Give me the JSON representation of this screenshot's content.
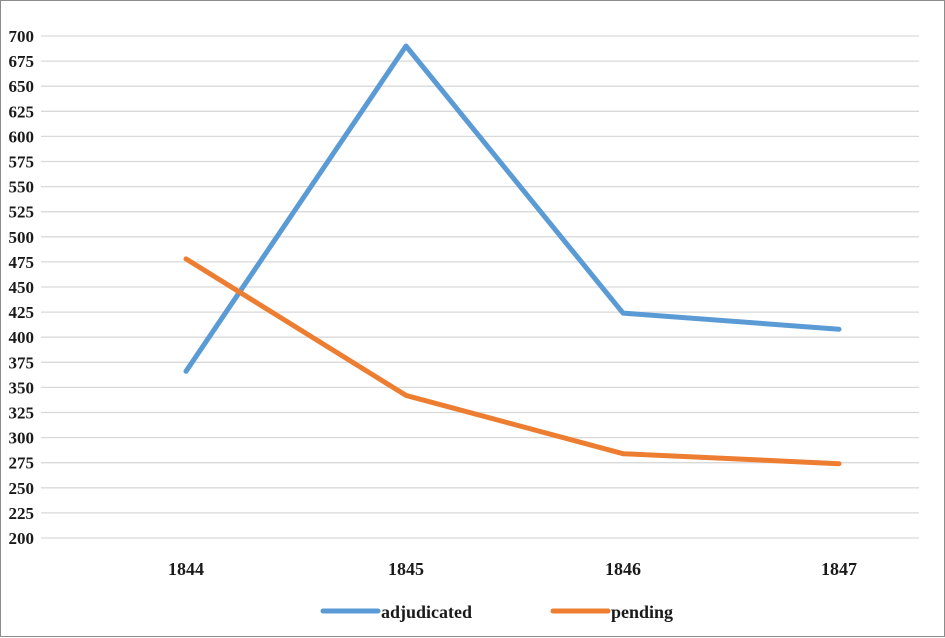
{
  "chart_data": {
    "type": "line",
    "categories": [
      "1844",
      "1845",
      "1846",
      "1847"
    ],
    "series": [
      {
        "name": "adjudicated",
        "color": "#5b9bd5",
        "values": [
          366,
          690,
          424,
          408
        ]
      },
      {
        "name": "pending",
        "color": "#ed7d31",
        "values": [
          478,
          342,
          284,
          274
        ]
      }
    ],
    "ylim": [
      200,
      700
    ],
    "ytick_step": 25,
    "grid": true,
    "legend": "bottom",
    "title": "",
    "xlabel": "",
    "ylabel": ""
  }
}
